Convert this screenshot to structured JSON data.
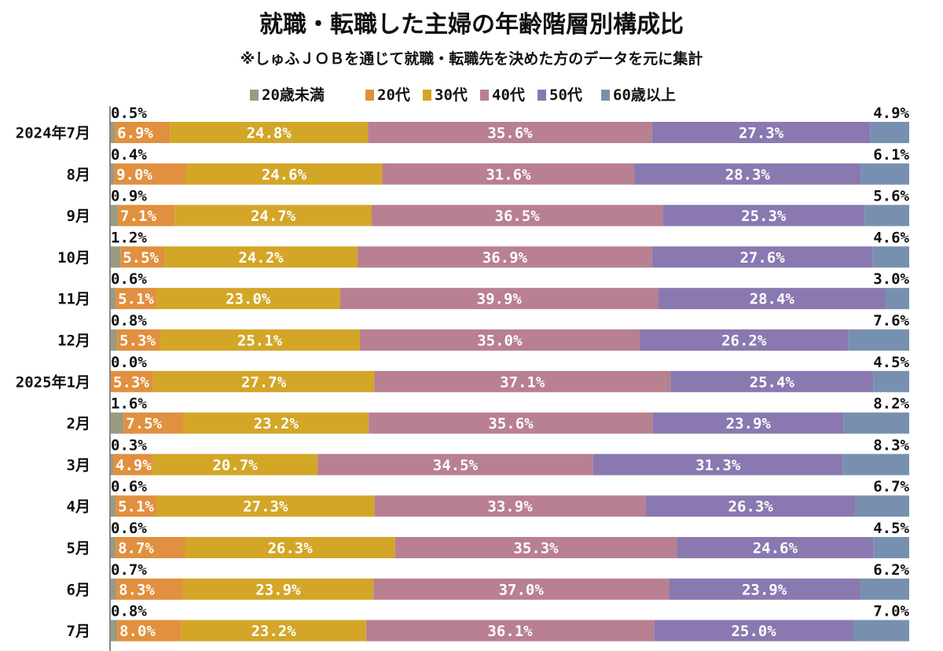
{
  "chart_data": {
    "type": "bar",
    "orientation": "horizontal",
    "stacked": true,
    "title": "就職・転職した主婦の年齢階層別構成比",
    "subtitle": "※しゅふＪＯＢを通じて就職・転職先を決めた方のデータを元に集計",
    "legend_position": "top",
    "unit": "%",
    "categories": [
      "2024年7月",
      "8月",
      "9月",
      "10月",
      "11月",
      "12月",
      "2025年1月",
      "2月",
      "3月",
      "4月",
      "5月",
      "6月",
      "7月"
    ],
    "series": [
      {
        "name": "20歳未満",
        "color": "#9a9a80",
        "values": [
          0.5,
          0.4,
          0.9,
          1.2,
          0.6,
          0.8,
          0.0,
          1.6,
          0.3,
          0.6,
          0.6,
          0.7,
          0.8
        ]
      },
      {
        "name": "20代",
        "color": "#e0903e",
        "values": [
          6.9,
          9.0,
          7.1,
          5.5,
          5.1,
          5.3,
          5.3,
          7.5,
          4.9,
          5.1,
          8.7,
          8.3,
          8.0
        ]
      },
      {
        "name": "30代",
        "color": "#d3a628",
        "values": [
          24.8,
          24.6,
          24.7,
          24.2,
          23.0,
          25.1,
          27.7,
          23.2,
          20.7,
          27.3,
          26.3,
          23.9,
          23.2
        ]
      },
      {
        "name": "40代",
        "color": "#b88090",
        "values": [
          35.6,
          31.6,
          36.5,
          36.9,
          39.9,
          35.0,
          37.1,
          35.6,
          34.5,
          33.9,
          35.3,
          37.0,
          36.1
        ]
      },
      {
        "name": "50代",
        "color": "#8a78b0",
        "values": [
          27.3,
          28.3,
          25.3,
          27.6,
          28.4,
          26.2,
          25.4,
          23.9,
          31.3,
          26.3,
          24.6,
          23.9,
          25.0
        ]
      },
      {
        "name": "60歳以上",
        "color": "#7890b0",
        "values": [
          4.9,
          6.1,
          5.6,
          4.6,
          3.0,
          7.6,
          4.5,
          8.2,
          8.3,
          6.7,
          4.5,
          6.2,
          7.0
        ]
      }
    ]
  }
}
